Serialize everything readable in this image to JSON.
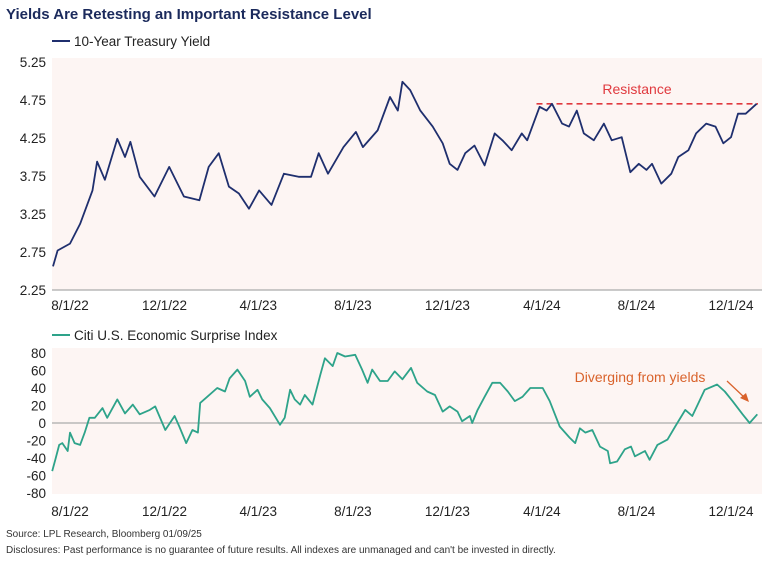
{
  "colors": {
    "yield": "#1f2f6e",
    "surprise": "#2ea38a",
    "resistance": "#e0393e",
    "diverging": "#d9622b",
    "plot_bg": "#fdf5f3",
    "axis": "#b8b8b8"
  },
  "chart_data": [
    {
      "type": "line",
      "title": "Yields Are Retesting an Important Resistance Level",
      "legend": "10-Year Treasury Yield",
      "legend_position": "top-left",
      "ylim": [
        2.25,
        5.25
      ],
      "yticks": [
        "5.25",
        "4.75",
        "4.25",
        "3.75",
        "3.25",
        "2.75",
        "2.25"
      ],
      "xticks": [
        "8/1/22",
        "12/1/22",
        "4/1/23",
        "8/1/23",
        "12/1/23",
        "4/1/24",
        "8/1/24",
        "12/1/24"
      ],
      "grid": false,
      "annotation": {
        "text": "Resistance",
        "level": 4.7,
        "from": "2024-03-25"
      },
      "series": [
        {
          "name": "10-Year Treasury Yield",
          "points": [
            [
              "2022-07-10",
              2.56
            ],
            [
              "2022-07-16",
              2.77
            ],
            [
              "2022-08-01",
              2.86
            ],
            [
              "2022-08-14",
              3.12
            ],
            [
              "2022-08-30",
              3.56
            ],
            [
              "2022-09-05",
              3.94
            ],
            [
              "2022-09-15",
              3.7
            ],
            [
              "2022-10-01",
              4.24
            ],
            [
              "2022-10-11",
              4.0
            ],
            [
              "2022-10-18",
              4.2
            ],
            [
              "2022-10-30",
              3.74
            ],
            [
              "2022-11-18",
              3.48
            ],
            [
              "2022-12-07",
              3.87
            ],
            [
              "2022-12-26",
              3.48
            ],
            [
              "2023-01-15",
              3.43
            ],
            [
              "2023-01-27",
              3.87
            ],
            [
              "2023-02-09",
              4.05
            ],
            [
              "2023-02-22",
              3.61
            ],
            [
              "2023-03-07",
              3.52
            ],
            [
              "2023-03-20",
              3.32
            ],
            [
              "2023-04-02",
              3.56
            ],
            [
              "2023-04-18",
              3.37
            ],
            [
              "2023-05-04",
              3.78
            ],
            [
              "2023-05-23",
              3.74
            ],
            [
              "2023-06-08",
              3.74
            ],
            [
              "2023-06-18",
              4.05
            ],
            [
              "2023-06-30",
              3.78
            ],
            [
              "2023-07-20",
              4.13
            ],
            [
              "2023-08-05",
              4.33
            ],
            [
              "2023-08-14",
              4.13
            ],
            [
              "2023-09-02",
              4.35
            ],
            [
              "2023-09-18",
              4.79
            ],
            [
              "2023-09-28",
              4.61
            ],
            [
              "2023-10-04",
              4.99
            ],
            [
              "2023-10-14",
              4.88
            ],
            [
              "2023-10-27",
              4.61
            ],
            [
              "2023-11-12",
              4.4
            ],
            [
              "2023-11-25",
              4.18
            ],
            [
              "2023-12-04",
              3.91
            ],
            [
              "2023-12-14",
              3.83
            ],
            [
              "2023-12-24",
              4.05
            ],
            [
              "2024-01-05",
              4.15
            ],
            [
              "2024-01-18",
              3.89
            ],
            [
              "2024-01-31",
              4.31
            ],
            [
              "2024-02-10",
              4.22
            ],
            [
              "2024-02-22",
              4.09
            ],
            [
              "2024-03-06",
              4.31
            ],
            [
              "2024-03-13",
              4.22
            ],
            [
              "2024-03-29",
              4.66
            ],
            [
              "2024-04-07",
              4.61
            ],
            [
              "2024-04-14",
              4.7
            ],
            [
              "2024-04-27",
              4.44
            ],
            [
              "2024-05-06",
              4.4
            ],
            [
              "2024-05-16",
              4.61
            ],
            [
              "2024-05-25",
              4.31
            ],
            [
              "2024-06-07",
              4.22
            ],
            [
              "2024-06-20",
              4.44
            ],
            [
              "2024-06-30",
              4.22
            ],
            [
              "2024-07-13",
              4.26
            ],
            [
              "2024-07-24",
              3.8
            ],
            [
              "2024-08-04",
              3.91
            ],
            [
              "2024-08-14",
              3.83
            ],
            [
              "2024-08-21",
              3.91
            ],
            [
              "2024-09-02",
              3.65
            ],
            [
              "2024-09-15",
              3.78
            ],
            [
              "2024-09-24",
              4.0
            ],
            [
              "2024-10-07",
              4.09
            ],
            [
              "2024-10-17",
              4.31
            ],
            [
              "2024-10-30",
              4.44
            ],
            [
              "2024-11-11",
              4.4
            ],
            [
              "2024-11-21",
              4.18
            ],
            [
              "2024-12-01",
              4.26
            ],
            [
              "2024-12-10",
              4.57
            ],
            [
              "2024-12-20",
              4.57
            ],
            [
              "2025-01-03",
              4.7
            ]
          ]
        }
      ]
    },
    {
      "type": "line",
      "legend": "Citi U.S. Economic Surprise Index",
      "legend_position": "top-left",
      "ylim": [
        -80,
        80
      ],
      "yticks": [
        "80",
        "60",
        "40",
        "20",
        "0",
        "-20",
        "-40",
        "-60",
        "-80"
      ],
      "xticks": [
        "8/1/22",
        "12/1/22",
        "4/1/23",
        "8/1/23",
        "12/1/23",
        "4/1/24",
        "8/1/24",
        "12/1/24"
      ],
      "grid": false,
      "annotation": {
        "text": "Diverging from yields"
      },
      "series": [
        {
          "name": "Citi U.S. Economic Surprise Index",
          "points": [
            [
              "2022-07-09",
              -55
            ],
            [
              "2022-07-13",
              -42
            ],
            [
              "2022-07-18",
              -25
            ],
            [
              "2022-07-22",
              -23
            ],
            [
              "2022-07-29",
              -32
            ],
            [
              "2022-08-01",
              -11
            ],
            [
              "2022-08-07",
              -23
            ],
            [
              "2022-08-14",
              -25
            ],
            [
              "2022-08-20",
              -11
            ],
            [
              "2022-08-26",
              6
            ],
            [
              "2022-09-02",
              6
            ],
            [
              "2022-09-12",
              17
            ],
            [
              "2022-09-18",
              6
            ],
            [
              "2022-10-01",
              27
            ],
            [
              "2022-10-11",
              11
            ],
            [
              "2022-10-21",
              21
            ],
            [
              "2022-10-30",
              10
            ],
            [
              "2022-11-12",
              15
            ],
            [
              "2022-11-19",
              19
            ],
            [
              "2022-12-02",
              -8
            ],
            [
              "2022-12-14",
              8
            ],
            [
              "2022-12-20",
              -4
            ],
            [
              "2022-12-29",
              -23
            ],
            [
              "2023-01-06",
              -8
            ],
            [
              "2023-01-13",
              -11
            ],
            [
              "2023-01-16",
              23
            ],
            [
              "2023-01-25",
              30
            ],
            [
              "2023-02-07",
              40
            ],
            [
              "2023-02-17",
              36
            ],
            [
              "2023-02-23",
              51
            ],
            [
              "2023-03-05",
              61
            ],
            [
              "2023-03-15",
              48
            ],
            [
              "2023-03-21",
              30
            ],
            [
              "2023-03-31",
              38
            ],
            [
              "2023-04-06",
              27
            ],
            [
              "2023-04-16",
              17
            ],
            [
              "2023-04-29",
              -2
            ],
            [
              "2023-05-05",
              6
            ],
            [
              "2023-05-12",
              38
            ],
            [
              "2023-05-18",
              27
            ],
            [
              "2023-05-25",
              21
            ],
            [
              "2023-05-31",
              32
            ],
            [
              "2023-06-10",
              21
            ],
            [
              "2023-06-20",
              55
            ],
            [
              "2023-06-26",
              74
            ],
            [
              "2023-07-06",
              65
            ],
            [
              "2023-07-12",
              80
            ],
            [
              "2023-07-22",
              76
            ],
            [
              "2023-08-04",
              78
            ],
            [
              "2023-08-13",
              61
            ],
            [
              "2023-08-20",
              46
            ],
            [
              "2023-08-26",
              61
            ],
            [
              "2023-09-05",
              48
            ],
            [
              "2023-09-15",
              48
            ],
            [
              "2023-09-24",
              59
            ],
            [
              "2023-10-04",
              50
            ],
            [
              "2023-10-15",
              63
            ],
            [
              "2023-10-23",
              46
            ],
            [
              "2023-11-05",
              36
            ],
            [
              "2023-11-15",
              32
            ],
            [
              "2023-11-25",
              13
            ],
            [
              "2023-12-04",
              19
            ],
            [
              "2023-12-14",
              13
            ],
            [
              "2023-12-20",
              2
            ],
            [
              "2023-12-30",
              8
            ],
            [
              "2024-01-02",
              0
            ],
            [
              "2024-01-09",
              15
            ],
            [
              "2024-01-18",
              30
            ],
            [
              "2024-01-28",
              46
            ],
            [
              "2024-02-07",
              46
            ],
            [
              "2024-02-17",
              36
            ],
            [
              "2024-02-26",
              25
            ],
            [
              "2024-03-07",
              30
            ],
            [
              "2024-03-17",
              40
            ],
            [
              "2024-04-02",
              40
            ],
            [
              "2024-04-11",
              25
            ],
            [
              "2024-04-24",
              -4
            ],
            [
              "2024-05-07",
              -17
            ],
            [
              "2024-05-14",
              -23
            ],
            [
              "2024-05-20",
              -6
            ],
            [
              "2024-05-27",
              -11
            ],
            [
              "2024-06-05",
              -8
            ],
            [
              "2024-06-15",
              -27
            ],
            [
              "2024-06-25",
              -32
            ],
            [
              "2024-06-28",
              -46
            ],
            [
              "2024-07-07",
              -44
            ],
            [
              "2024-07-17",
              -30
            ],
            [
              "2024-07-25",
              -27
            ],
            [
              "2024-07-30",
              -38
            ],
            [
              "2024-08-12",
              -32
            ],
            [
              "2024-08-18",
              -42
            ],
            [
              "2024-08-28",
              -25
            ],
            [
              "2024-09-10",
              -19
            ],
            [
              "2024-09-20",
              -4
            ],
            [
              "2024-10-03",
              15
            ],
            [
              "2024-10-12",
              8
            ],
            [
              "2024-10-19",
              21
            ],
            [
              "2024-10-28",
              38
            ],
            [
              "2024-11-13",
              44
            ],
            [
              "2024-11-23",
              36
            ],
            [
              "2024-12-03",
              25
            ],
            [
              "2024-12-16",
              10
            ],
            [
              "2024-12-25",
              0
            ],
            [
              "2025-01-04",
              10
            ]
          ]
        }
      ]
    }
  ],
  "footer": {
    "source": "Source: LPL Research, Bloomberg 01/09/25",
    "disclosure": "Disclosures: Past performance is no guarantee of future results. All indexes are unmanaged and can't be invested in directly."
  }
}
